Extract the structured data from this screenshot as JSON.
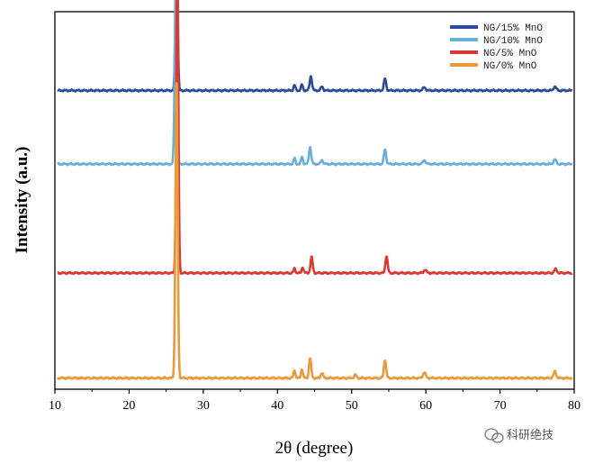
{
  "chart_data": {
    "type": "line",
    "title": "",
    "xlabel": "2θ (degree)",
    "ylabel": "Intensity (a.u.)",
    "xlim": [
      10,
      80
    ],
    "xticks": [
      "10",
      "20",
      "30",
      "40",
      "50",
      "60",
      "70",
      "80"
    ],
    "y_ticks_shown": false,
    "grid": false,
    "legend_position": "top-right",
    "stacked_offset": true,
    "series": [
      {
        "name": "NG/15% MnO",
        "color": "#2b4b9b",
        "baseline": 330,
        "peaks": [
          {
            "x": 26.4,
            "height": 245,
            "width": 0.28
          },
          {
            "x": 42.3,
            "height": 8,
            "width": 0.25
          },
          {
            "x": 43.3,
            "height": 9,
            "width": 0.25
          },
          {
            "x": 44.5,
            "height": 22,
            "width": 0.3
          },
          {
            "x": 46.0,
            "height": 6,
            "width": 0.3
          },
          {
            "x": 54.5,
            "height": 18,
            "width": 0.3
          },
          {
            "x": 59.8,
            "height": 5,
            "width": 0.35
          },
          {
            "x": 77.4,
            "height": 6,
            "width": 0.35
          }
        ]
      },
      {
        "name": "NG/10% MnO",
        "color": "#6aafd8",
        "baseline": 218,
        "peaks": [
          {
            "x": 26.3,
            "height": 285,
            "width": 0.3
          },
          {
            "x": 42.3,
            "height": 9,
            "width": 0.25
          },
          {
            "x": 43.3,
            "height": 11,
            "width": 0.25
          },
          {
            "x": 44.4,
            "height": 26,
            "width": 0.3
          },
          {
            "x": 46.0,
            "height": 6,
            "width": 0.3
          },
          {
            "x": 54.5,
            "height": 22,
            "width": 0.3
          },
          {
            "x": 59.8,
            "height": 6,
            "width": 0.35
          },
          {
            "x": 77.4,
            "height": 7,
            "width": 0.35
          }
        ]
      },
      {
        "name": "NG/5% MnO",
        "color": "#d93a32",
        "baseline": 52,
        "peaks": [
          {
            "x": 26.5,
            "height": 480,
            "width": 0.28
          },
          {
            "x": 42.3,
            "height": 7,
            "width": 0.25
          },
          {
            "x": 43.4,
            "height": 9,
            "width": 0.25
          },
          {
            "x": 44.6,
            "height": 24,
            "width": 0.3
          },
          {
            "x": 54.7,
            "height": 26,
            "width": 0.3
          },
          {
            "x": 59.9,
            "height": 5,
            "width": 0.35
          },
          {
            "x": 77.5,
            "height": 6,
            "width": 0.35
          }
        ]
      },
      {
        "name": "NG/0% MnO",
        "color": "#e89a3c",
        "baseline": -108,
        "peaks": [
          {
            "x": 26.4,
            "height": 450,
            "width": 0.3
          },
          {
            "x": 42.3,
            "height": 12,
            "width": 0.25
          },
          {
            "x": 43.3,
            "height": 14,
            "width": 0.25
          },
          {
            "x": 44.4,
            "height": 30,
            "width": 0.3
          },
          {
            "x": 46.0,
            "height": 8,
            "width": 0.3
          },
          {
            "x": 50.5,
            "height": 5,
            "width": 0.3
          },
          {
            "x": 54.5,
            "height": 28,
            "width": 0.3
          },
          {
            "x": 59.8,
            "height": 9,
            "width": 0.35
          },
          {
            "x": 77.4,
            "height": 10,
            "width": 0.35
          }
        ]
      }
    ],
    "ylim": [
      -125,
      450
    ]
  },
  "watermark": {
    "icon": "wechat-icon",
    "text": "科研绝技"
  }
}
